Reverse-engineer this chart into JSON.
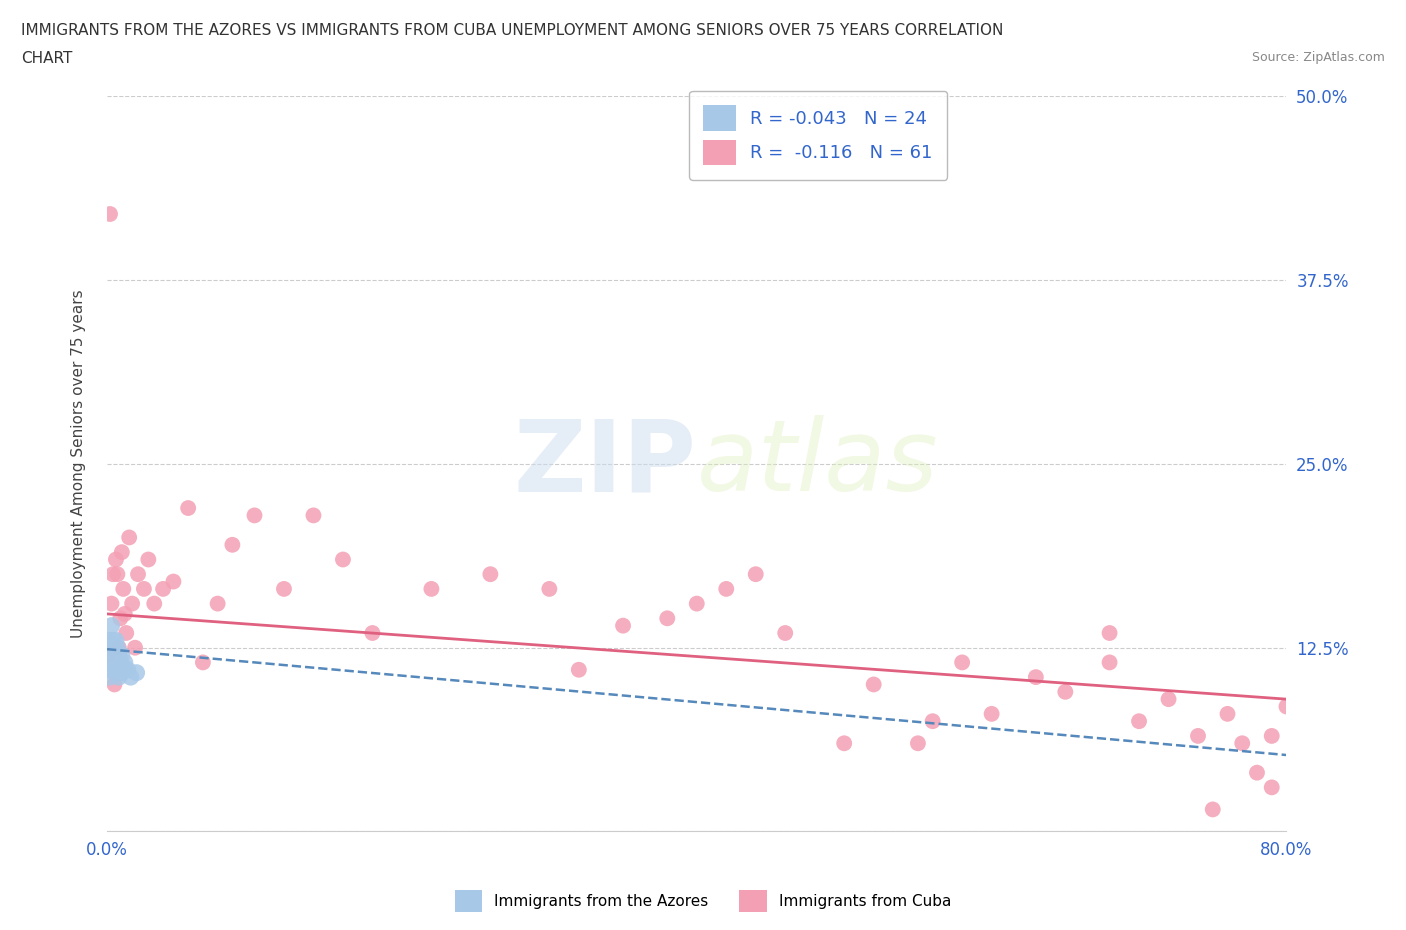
{
  "title_line1": "IMMIGRANTS FROM THE AZORES VS IMMIGRANTS FROM CUBA UNEMPLOYMENT AMONG SENIORS OVER 75 YEARS CORRELATION",
  "title_line2": "CHART",
  "source_text": "Source: ZipAtlas.com",
  "ylabel": "Unemployment Among Seniors over 75 years",
  "xlim": [
    0.0,
    0.8
  ],
  "ylim": [
    0.0,
    0.5
  ],
  "yticks": [
    0.0,
    0.125,
    0.25,
    0.375,
    0.5
  ],
  "ytick_labels": [
    "",
    "12.5%",
    "25.0%",
    "37.5%",
    "50.0%"
  ],
  "xticks": [
    0.0,
    0.1,
    0.2,
    0.3,
    0.4,
    0.5,
    0.6,
    0.7,
    0.8
  ],
  "xtick_labels": [
    "0.0%",
    "",
    "",
    "",
    "",
    "",
    "",
    "",
    "80.0%"
  ],
  "azores_color": "#a8c8e8",
  "cuba_color": "#f4a0b4",
  "azores_R": -0.043,
  "azores_N": 24,
  "cuba_R": -0.116,
  "cuba_N": 61,
  "background_color": "#ffffff",
  "grid_color": "#cccccc",
  "watermark_zip": "ZIP",
  "watermark_atlas": "atlas",
  "azores_trend_x0": 0.0,
  "azores_trend_y0": 0.124,
  "azores_trend_x1": 0.8,
  "azores_trend_y1": 0.052,
  "cuba_trend_x0": 0.0,
  "cuba_trend_y0": 0.148,
  "cuba_trend_x1": 0.8,
  "cuba_trend_y1": 0.09,
  "azores_scatter_x": [
    0.001,
    0.001,
    0.002,
    0.002,
    0.003,
    0.003,
    0.004,
    0.004,
    0.005,
    0.005,
    0.006,
    0.006,
    0.007,
    0.007,
    0.008,
    0.008,
    0.009,
    0.01,
    0.01,
    0.011,
    0.012,
    0.014,
    0.016,
    0.02
  ],
  "azores_scatter_y": [
    0.13,
    0.11,
    0.125,
    0.105,
    0.14,
    0.12,
    0.13,
    0.115,
    0.125,
    0.11,
    0.13,
    0.115,
    0.125,
    0.108,
    0.12,
    0.105,
    0.115,
    0.12,
    0.108,
    0.112,
    0.115,
    0.11,
    0.105,
    0.108
  ],
  "cuba_scatter_x": [
    0.001,
    0.002,
    0.003,
    0.004,
    0.005,
    0.006,
    0.007,
    0.008,
    0.009,
    0.01,
    0.011,
    0.012,
    0.013,
    0.015,
    0.017,
    0.019,
    0.021,
    0.025,
    0.028,
    0.032,
    0.038,
    0.045,
    0.055,
    0.065,
    0.075,
    0.085,
    0.1,
    0.12,
    0.14,
    0.16,
    0.18,
    0.22,
    0.26,
    0.3,
    0.32,
    0.35,
    0.38,
    0.4,
    0.42,
    0.44,
    0.46,
    0.5,
    0.52,
    0.55,
    0.56,
    0.58,
    0.6,
    0.63,
    0.65,
    0.68,
    0.7,
    0.72,
    0.74,
    0.75,
    0.76,
    0.77,
    0.78,
    0.79,
    0.79,
    0.8,
    0.68
  ],
  "cuba_scatter_y": [
    0.12,
    0.42,
    0.155,
    0.175,
    0.1,
    0.185,
    0.175,
    0.125,
    0.145,
    0.19,
    0.165,
    0.148,
    0.135,
    0.2,
    0.155,
    0.125,
    0.175,
    0.165,
    0.185,
    0.155,
    0.165,
    0.17,
    0.22,
    0.115,
    0.155,
    0.195,
    0.215,
    0.165,
    0.215,
    0.185,
    0.135,
    0.165,
    0.175,
    0.165,
    0.11,
    0.14,
    0.145,
    0.155,
    0.165,
    0.175,
    0.135,
    0.06,
    0.1,
    0.06,
    0.075,
    0.115,
    0.08,
    0.105,
    0.095,
    0.115,
    0.075,
    0.09,
    0.065,
    0.015,
    0.08,
    0.06,
    0.04,
    0.065,
    0.03,
    0.085,
    0.135
  ]
}
